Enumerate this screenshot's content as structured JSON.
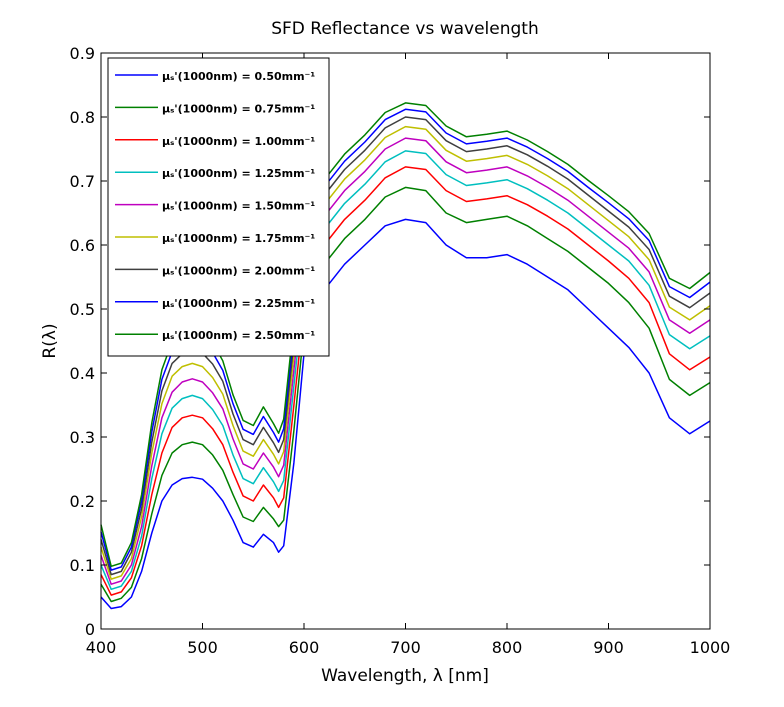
{
  "chart_data": {
    "type": "line",
    "title": "SFD Reflectance vs wavelength",
    "xlabel": "Wavelength, λ [nm]",
    "ylabel": "R(λ)",
    "xlim": [
      400,
      1000
    ],
    "ylim": [
      0,
      0.9
    ],
    "xticks": [
      400,
      500,
      600,
      700,
      800,
      900,
      1000
    ],
    "yticks": [
      0,
      0.1,
      0.2,
      0.3,
      0.4,
      0.5,
      0.6,
      0.7,
      0.8,
      0.9
    ],
    "xtick_labels": [
      "400",
      "500",
      "600",
      "700",
      "800",
      "900",
      "1000"
    ],
    "ytick_labels": [
      "0",
      "0.1",
      "0.2",
      "0.3",
      "0.4",
      "0.5",
      "0.6",
      "0.7",
      "0.8",
      "0.9"
    ],
    "grid": false,
    "legend_position": "top-left",
    "x": [
      400,
      410,
      420,
      430,
      440,
      450,
      460,
      470,
      480,
      490,
      500,
      510,
      520,
      530,
      540,
      550,
      560,
      570,
      575,
      580,
      590,
      600,
      620,
      640,
      660,
      680,
      700,
      720,
      740,
      760,
      780,
      800,
      820,
      840,
      860,
      880,
      900,
      920,
      940,
      960,
      980,
      1000
    ],
    "series": [
      {
        "name": "μₛ'(1000nm) = 0.50mm⁻¹",
        "color": "#0000ff",
        "values": [
          0.05,
          0.032,
          0.035,
          0.05,
          0.09,
          0.15,
          0.2,
          0.225,
          0.235,
          0.237,
          0.234,
          0.22,
          0.2,
          0.17,
          0.135,
          0.128,
          0.148,
          0.135,
          0.12,
          0.13,
          0.26,
          0.43,
          0.53,
          0.57,
          0.6,
          0.63,
          0.64,
          0.635,
          0.6,
          0.58,
          0.58,
          0.585,
          0.57,
          0.55,
          0.53,
          0.5,
          0.47,
          0.44,
          0.4,
          0.33,
          0.305,
          0.325
        ]
      },
      {
        "name": "μₛ'(1000nm) = 0.75mm⁻¹",
        "color": "#008000",
        "values": [
          0.07,
          0.043,
          0.048,
          0.065,
          0.11,
          0.18,
          0.24,
          0.275,
          0.288,
          0.292,
          0.288,
          0.272,
          0.248,
          0.21,
          0.175,
          0.168,
          0.19,
          0.172,
          0.16,
          0.17,
          0.31,
          0.47,
          0.57,
          0.61,
          0.64,
          0.675,
          0.69,
          0.685,
          0.65,
          0.635,
          0.64,
          0.645,
          0.63,
          0.61,
          0.59,
          0.565,
          0.54,
          0.51,
          0.47,
          0.39,
          0.365,
          0.385
        ]
      },
      {
        "name": "μₛ'(1000nm) = 1.00mm⁻¹",
        "color": "#ff0000",
        "values": [
          0.085,
          0.053,
          0.058,
          0.08,
          0.13,
          0.21,
          0.275,
          0.315,
          0.33,
          0.334,
          0.33,
          0.313,
          0.288,
          0.245,
          0.208,
          0.2,
          0.225,
          0.205,
          0.19,
          0.205,
          0.35,
          0.5,
          0.6,
          0.64,
          0.67,
          0.705,
          0.722,
          0.718,
          0.685,
          0.668,
          0.672,
          0.677,
          0.663,
          0.645,
          0.625,
          0.6,
          0.575,
          0.548,
          0.51,
          0.43,
          0.405,
          0.425
        ]
      },
      {
        "name": "μₛ'(1000nm) = 1.25mm⁻¹",
        "color": "#00bfbf",
        "values": [
          0.1,
          0.062,
          0.067,
          0.09,
          0.145,
          0.235,
          0.305,
          0.345,
          0.36,
          0.365,
          0.36,
          0.343,
          0.318,
          0.272,
          0.235,
          0.227,
          0.252,
          0.23,
          0.215,
          0.232,
          0.38,
          0.53,
          0.625,
          0.665,
          0.695,
          0.73,
          0.747,
          0.743,
          0.71,
          0.693,
          0.697,
          0.702,
          0.688,
          0.67,
          0.65,
          0.625,
          0.6,
          0.575,
          0.537,
          0.46,
          0.438,
          0.458
        ]
      },
      {
        "name": "μₛ'(1000nm) = 1.50mm⁻¹",
        "color": "#bf00bf",
        "values": [
          0.115,
          0.07,
          0.075,
          0.1,
          0.16,
          0.255,
          0.33,
          0.37,
          0.386,
          0.391,
          0.386,
          0.369,
          0.344,
          0.297,
          0.258,
          0.25,
          0.275,
          0.253,
          0.238,
          0.256,
          0.405,
          0.555,
          0.645,
          0.685,
          0.715,
          0.75,
          0.767,
          0.763,
          0.73,
          0.713,
          0.717,
          0.722,
          0.708,
          0.69,
          0.67,
          0.645,
          0.62,
          0.595,
          0.558,
          0.483,
          0.462,
          0.483
        ]
      },
      {
        "name": "μₛ'(1000nm) = 1.75mm⁻¹",
        "color": "#bfbf00",
        "values": [
          0.128,
          0.078,
          0.083,
          0.11,
          0.175,
          0.275,
          0.352,
          0.395,
          0.41,
          0.415,
          0.41,
          0.393,
          0.367,
          0.318,
          0.278,
          0.27,
          0.296,
          0.273,
          0.258,
          0.277,
          0.428,
          0.575,
          0.663,
          0.703,
          0.733,
          0.768,
          0.785,
          0.781,
          0.748,
          0.731,
          0.735,
          0.74,
          0.726,
          0.708,
          0.688,
          0.663,
          0.638,
          0.613,
          0.577,
          0.503,
          0.483,
          0.505
        ]
      },
      {
        "name": "μₛ'(1000nm) = 2.00mm⁻¹",
        "color": "#3f3f3f",
        "values": [
          0.14,
          0.085,
          0.09,
          0.12,
          0.188,
          0.292,
          0.372,
          0.415,
          0.43,
          0.436,
          0.431,
          0.414,
          0.387,
          0.336,
          0.296,
          0.288,
          0.315,
          0.291,
          0.276,
          0.296,
          0.448,
          0.592,
          0.678,
          0.718,
          0.748,
          0.783,
          0.8,
          0.796,
          0.763,
          0.746,
          0.75,
          0.755,
          0.741,
          0.723,
          0.703,
          0.678,
          0.653,
          0.628,
          0.593,
          0.52,
          0.502,
          0.525
        ]
      },
      {
        "name": "μₛ'(1000nm) = 2.25mm⁻¹",
        "color": "#0000ff",
        "values": [
          0.152,
          0.092,
          0.097,
          0.128,
          0.2,
          0.308,
          0.39,
          0.433,
          0.449,
          0.455,
          0.45,
          0.432,
          0.404,
          0.352,
          0.312,
          0.304,
          0.332,
          0.307,
          0.292,
          0.313,
          0.465,
          0.607,
          0.691,
          0.731,
          0.761,
          0.796,
          0.812,
          0.808,
          0.775,
          0.758,
          0.762,
          0.767,
          0.753,
          0.735,
          0.715,
          0.69,
          0.666,
          0.641,
          0.607,
          0.535,
          0.518,
          0.542
        ]
      },
      {
        "name": "μₛ'(1000nm) = 2.50mm⁻¹",
        "color": "#008000",
        "values": [
          0.163,
          0.098,
          0.103,
          0.135,
          0.21,
          0.322,
          0.405,
          0.449,
          0.465,
          0.471,
          0.466,
          0.448,
          0.419,
          0.366,
          0.326,
          0.318,
          0.347,
          0.321,
          0.306,
          0.328,
          0.48,
          0.62,
          0.702,
          0.742,
          0.772,
          0.807,
          0.822,
          0.818,
          0.786,
          0.769,
          0.773,
          0.778,
          0.764,
          0.746,
          0.726,
          0.701,
          0.677,
          0.652,
          0.618,
          0.548,
          0.532,
          0.557
        ]
      }
    ]
  }
}
